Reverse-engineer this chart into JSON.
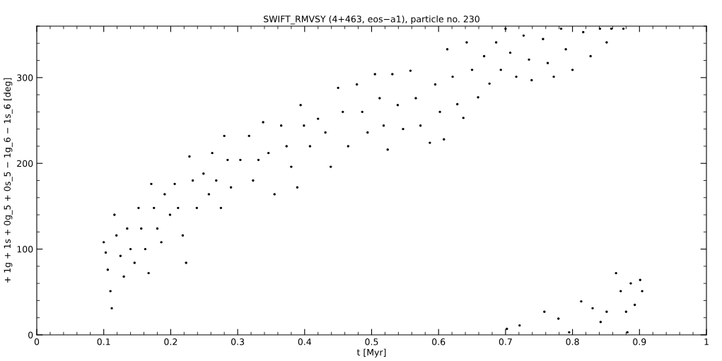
{
  "chart_data": {
    "type": "scatter",
    "title": "SWIFT_RMVSY (4+463, eos−a1), particle no. 230",
    "xlabel": "t [Myr]",
    "ylabel": "+ 1g + 1s + 0g_5 + 0s_5 − 1g_6 − 1s_6 [deg]",
    "xlim": [
      0,
      1
    ],
    "ylim": [
      0,
      360
    ],
    "xticks": [
      0,
      0.1,
      0.2,
      0.3,
      0.4,
      0.5,
      0.6,
      0.7,
      0.8,
      0.9,
      1
    ],
    "yticks": [
      0,
      100,
      200,
      300
    ],
    "grid": false,
    "legend": false,
    "marker": "circle",
    "series": [
      {
        "color": "#000000",
        "x": [
          0.1,
          0.103,
          0.106,
          0.11,
          0.112,
          0.116,
          0.119,
          0.125,
          0.13,
          0.135,
          0.14,
          0.146,
          0.152,
          0.156,
          0.162,
          0.167,
          0.171,
          0.175,
          0.18,
          0.186,
          0.191,
          0.199,
          0.206,
          0.211,
          0.218,
          0.223,
          0.228,
          0.233,
          0.239,
          0.249,
          0.257,
          0.262,
          0.268,
          0.275,
          0.28,
          0.285,
          0.29,
          0.304,
          0.317,
          0.323,
          0.331,
          0.338,
          0.346,
          0.355,
          0.365,
          0.373,
          0.38,
          0.389,
          0.394,
          0.399,
          0.408,
          0.42,
          0.431,
          0.439,
          0.45,
          0.457,
          0.465,
          0.478,
          0.486,
          0.494,
          0.505,
          0.512,
          0.518,
          0.524,
          0.531,
          0.539,
          0.547,
          0.558,
          0.566,
          0.573,
          0.587,
          0.595,
          0.602,
          0.608,
          0.613,
          0.621,
          0.628,
          0.637,
          0.642,
          0.65,
          0.659,
          0.668,
          0.676,
          0.686,
          0.693,
          0.7,
          0.707,
          0.716,
          0.727,
          0.735,
          0.739,
          0.756,
          0.763,
          0.772,
          0.783,
          0.79,
          0.8,
          0.816,
          0.827,
          0.841,
          0.851,
          0.858,
          0.876,
          0.702,
          0.721,
          0.758,
          0.779,
          0.795,
          0.813,
          0.83,
          0.842,
          0.851,
          0.865,
          0.872,
          0.88,
          0.887,
          0.893,
          0.901,
          0.904,
          0.882
        ],
        "values": [
          108,
          96,
          76,
          51,
          31,
          140,
          116,
          92,
          68,
          124,
          100,
          84,
          148,
          124,
          100,
          72,
          176,
          148,
          124,
          108,
          164,
          140,
          176,
          148,
          116,
          84,
          208,
          180,
          148,
          188,
          164,
          212,
          180,
          148,
          232,
          204,
          172,
          204,
          232,
          180,
          204,
          248,
          212,
          164,
          244,
          220,
          196,
          172,
          268,
          244,
          220,
          252,
          236,
          196,
          288,
          260,
          220,
          292,
          260,
          236,
          304,
          276,
          244,
          216,
          304,
          268,
          240,
          308,
          276,
          244,
          224,
          292,
          260,
          228,
          333,
          301,
          269,
          253,
          341,
          309,
          277,
          325,
          293,
          341,
          309,
          357,
          329,
          301,
          349,
          321,
          297,
          345,
          317,
          301,
          357,
          333,
          309,
          353,
          325,
          357,
          341,
          357,
          357,
          7,
          11,
          27,
          19,
          3,
          39,
          31,
          15,
          27,
          72,
          51,
          27,
          60,
          35,
          64,
          51,
          3
        ]
      }
    ]
  }
}
